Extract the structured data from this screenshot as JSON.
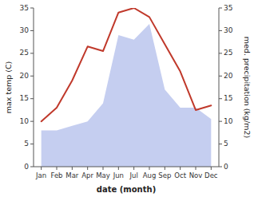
{
  "chart_data": {
    "type": "line",
    "xlabel": "date (month)",
    "ylabel": "max temp (C)",
    "y2label": "med. precipitation (kg/m2)",
    "categories": [
      "Jan",
      "Feb",
      "Mar",
      "Apr",
      "May",
      "Jun",
      "Jul",
      "Aug",
      "Sep",
      "Oct",
      "Nov",
      "Dec"
    ],
    "series": [
      {
        "type": "area",
        "axis": "y2",
        "color": "#c5cef0",
        "values": [
          8,
          8,
          9,
          10,
          14,
          29,
          28,
          31.5,
          17,
          13,
          13,
          10.5
        ]
      },
      {
        "type": "line",
        "color": "#c0392b",
        "values": [
          10,
          13,
          19,
          26.5,
          25.5,
          34,
          35,
          33,
          27,
          21,
          12.5,
          13.5
        ]
      }
    ],
    "ylim": [
      0,
      35
    ],
    "yticks": [
      0,
      5,
      10,
      15,
      20,
      25,
      30,
      35
    ],
    "y2lim": [
      0,
      35
    ],
    "y2ticks": [
      0,
      5,
      10,
      15,
      20,
      25,
      30,
      35
    ]
  }
}
